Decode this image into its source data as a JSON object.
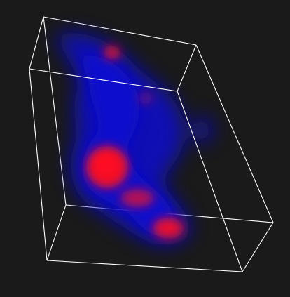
{
  "viewer": {
    "background_color": "#1a1a1a",
    "bounding_box_color": "#ffffff"
  },
  "volume": {
    "low_density_color": "#1010d0",
    "high_density_color": "#ff1020"
  }
}
